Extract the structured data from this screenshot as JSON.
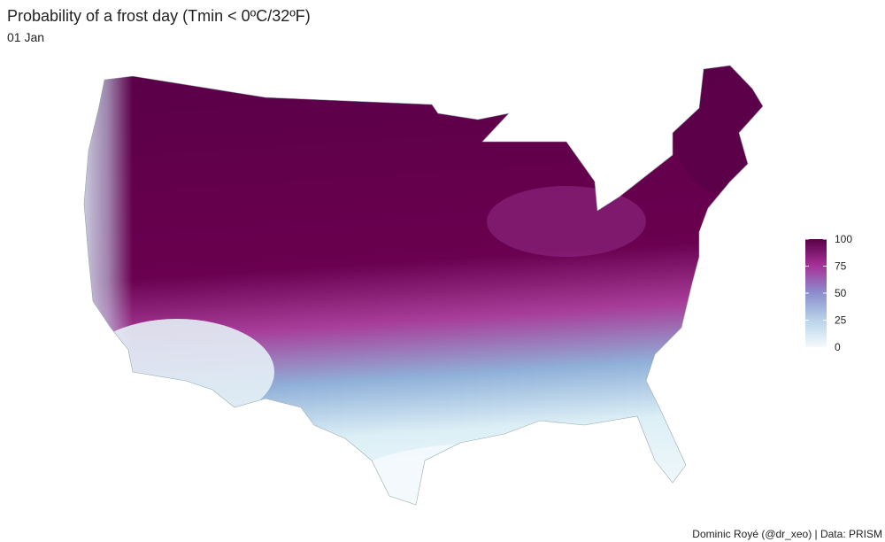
{
  "title": "Probability of a frost day (Tmin < 0ºC/32ºF)",
  "subtitle": "01 Jan",
  "legend": {
    "range": [
      0,
      100
    ],
    "ticks": [
      0,
      25,
      50,
      75,
      100
    ]
  },
  "caption": "Dominic Royé (@dr_xeo) | Data: PRISM"
}
